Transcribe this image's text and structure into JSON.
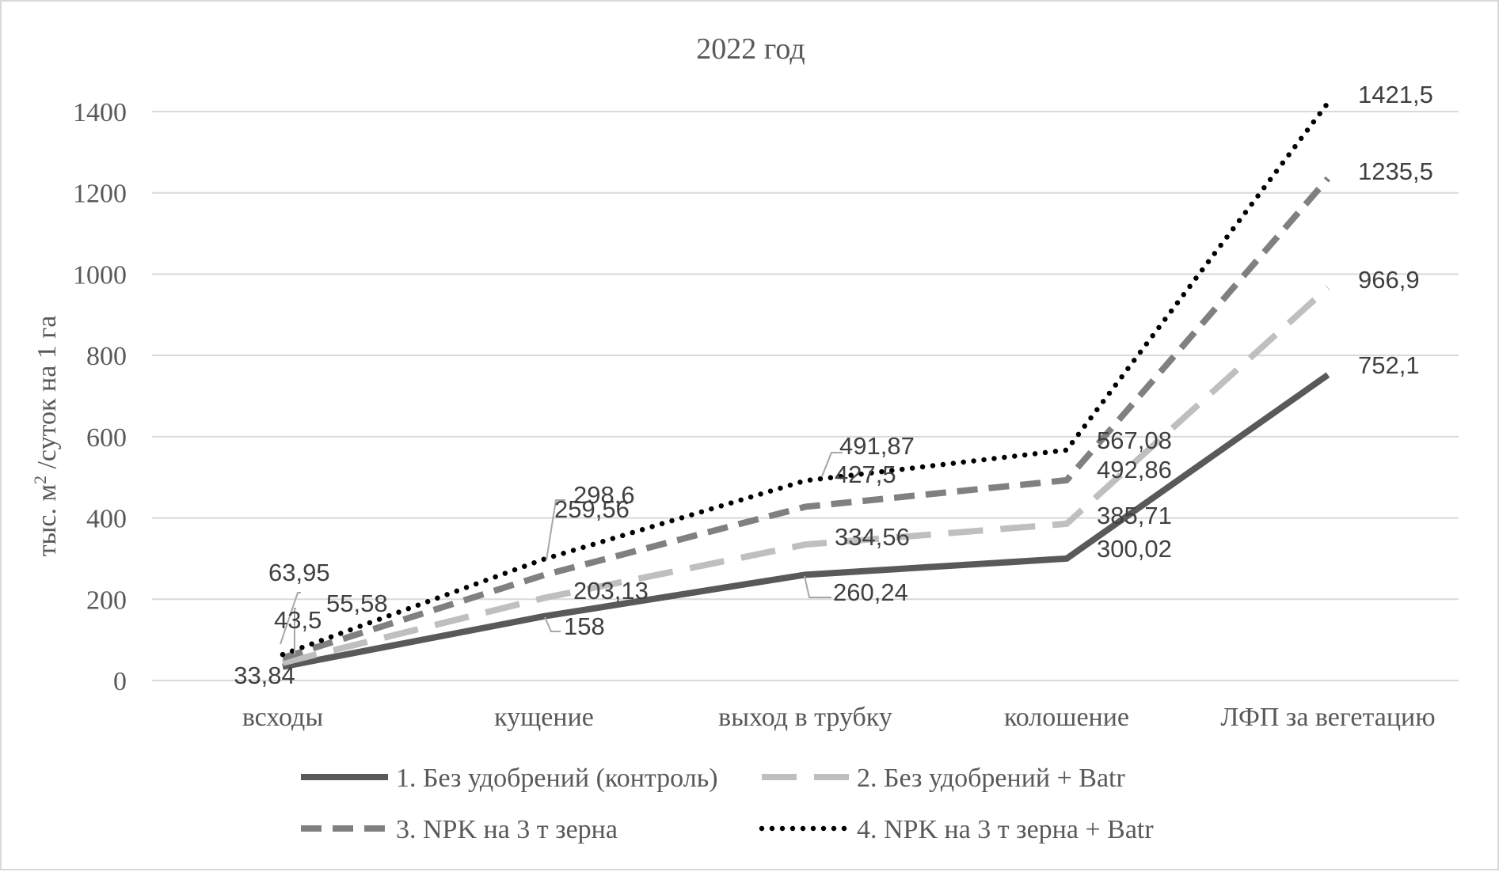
{
  "chart_data": {
    "type": "line",
    "title": "2022 год",
    "xlabel": "",
    "ylabel": "тыс. м² /суток на 1 га",
    "ylim": [
      0,
      1400
    ],
    "yticks": [
      0,
      200,
      400,
      600,
      800,
      1000,
      1200,
      1400
    ],
    "grid": true,
    "legend_position": "bottom",
    "categories": [
      "всходы",
      "кущение",
      "выход в трубку",
      "колошение",
      "ЛФП за вегетацию"
    ],
    "series": [
      {
        "name": "1. Без удобрений (контроль)",
        "values": [
          33.84,
          158,
          260.24,
          300.02,
          752.1
        ],
        "labels": [
          "33,84",
          "158",
          "260,24",
          "300,02",
          "752,1"
        ],
        "color": "#595959",
        "style": "solid"
      },
      {
        "name": "2. Без удобрений + Batr",
        "values": [
          43.5,
          203.13,
          334.56,
          385.71,
          966.9
        ],
        "labels": [
          "43,5",
          "203,13",
          "334,56",
          "385,71",
          "966,9"
        ],
        "color": "#bfbfbf",
        "style": "long-dash"
      },
      {
        "name": "3. NPK на 3 т зерна",
        "values": [
          55.58,
          259.56,
          427.5,
          492.86,
          1235.5
        ],
        "labels": [
          "55,58",
          "259,56",
          "427,5",
          "492,86",
          "1235,5"
        ],
        "color": "#808080",
        "style": "dash"
      },
      {
        "name": "4. NPK на 3 т зерна + Batr",
        "values": [
          63.95,
          298.6,
          491.87,
          567.08,
          1421.5
        ],
        "labels": [
          "63,95",
          "298,6",
          "491,87",
          "567,08",
          "1421,5"
        ],
        "color": "#000000",
        "style": "dot"
      }
    ]
  }
}
